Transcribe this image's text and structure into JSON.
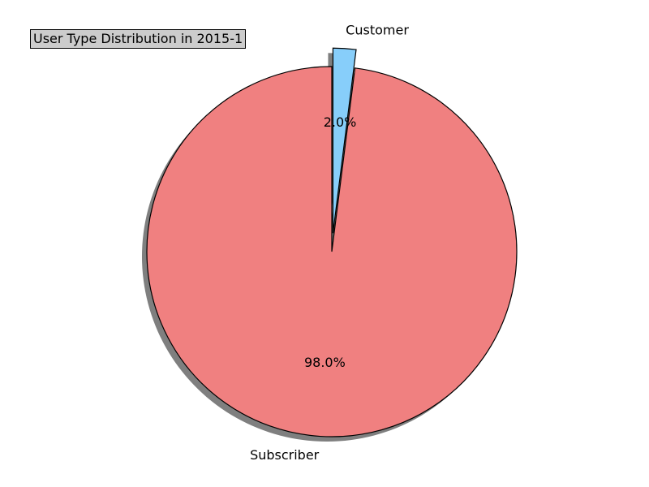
{
  "chart_data": {
    "type": "pie",
    "title": "User Type Distribution in 2015-1",
    "categories": [
      "Subscriber",
      "Customer"
    ],
    "values": [
      98.0,
      2.0
    ],
    "percent_labels": [
      "98.0%",
      "2.0%"
    ],
    "colors": [
      "#f08080",
      "#87cefa"
    ],
    "explode": [
      0,
      1
    ],
    "shadow": true,
    "edge_color": "#000000"
  }
}
